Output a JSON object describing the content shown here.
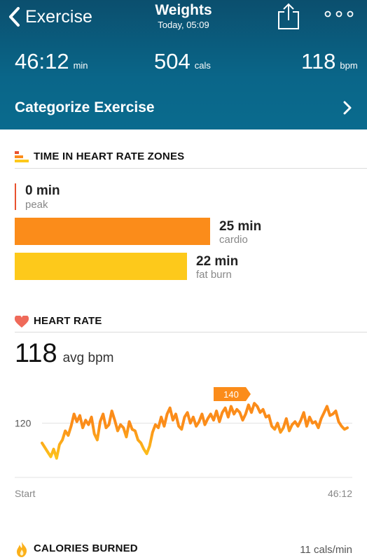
{
  "nav": {
    "back_label": "Exercise",
    "title": "Weights",
    "subtitle": "Today, 05:09",
    "share_icon": "share-icon",
    "more_icon": "more-dots-icon"
  },
  "stats": [
    {
      "value": "46:12",
      "unit": "min"
    },
    {
      "value": "504",
      "unit": "cals"
    },
    {
      "value": "118",
      "unit": "bpm"
    }
  ],
  "categorize": {
    "label": "Categorize Exercise"
  },
  "zones_section": {
    "title": "TIME IN HEART RATE ZONES",
    "zones": [
      {
        "value": "0 min",
        "label": "peak",
        "minutes": 0,
        "color": "#e8512e"
      },
      {
        "value": "25 min",
        "label": "cardio",
        "minutes": 25,
        "color": "#fb8c1a"
      },
      {
        "value": "22 min",
        "label": "fat burn",
        "minutes": 22,
        "color": "#fdc91b"
      }
    ]
  },
  "heart_section": {
    "title": "HEART RATE",
    "avg_value": "118",
    "avg_unit": "avg bpm"
  },
  "chart_data": {
    "type": "line",
    "series": [
      {
        "values": [
          107,
          104,
          101,
          98,
          103,
          97,
          106,
          109,
          115,
          112,
          118,
          126,
          121,
          125,
          117,
          122,
          119,
          124,
          113,
          109,
          121,
          126,
          117,
          119,
          128,
          122,
          115,
          119,
          117,
          111,
          121,
          116,
          115,
          109,
          107,
          103,
          100,
          105,
          114,
          119,
          117,
          124,
          118,
          126,
          130,
          122,
          126,
          118,
          116,
          124,
          127,
          120,
          124,
          118,
          121,
          126,
          119,
          123,
          126,
          122,
          128,
          121,
          127,
          130,
          124,
          131,
          126,
          129,
          127,
          122,
          126,
          132,
          127,
          133,
          131,
          127,
          129,
          124,
          125,
          118,
          116,
          120,
          114,
          117,
          123,
          115,
          119,
          121,
          118,
          122,
          127,
          118,
          124,
          120,
          121,
          117,
          123,
          127,
          131,
          125,
          126,
          128,
          121,
          118,
          116,
          117
        ]
      }
    ],
    "x_start_label": "Start",
    "x_end_label": "46:12",
    "y_tick": 120,
    "peak_label": "140",
    "ylim": [
      90,
      145
    ],
    "colors": {
      "high": "#fb8c1a",
      "low": "#fdc91b"
    }
  },
  "calories": {
    "title": "CALORIES BURNED",
    "rate": "11 cals/min"
  }
}
